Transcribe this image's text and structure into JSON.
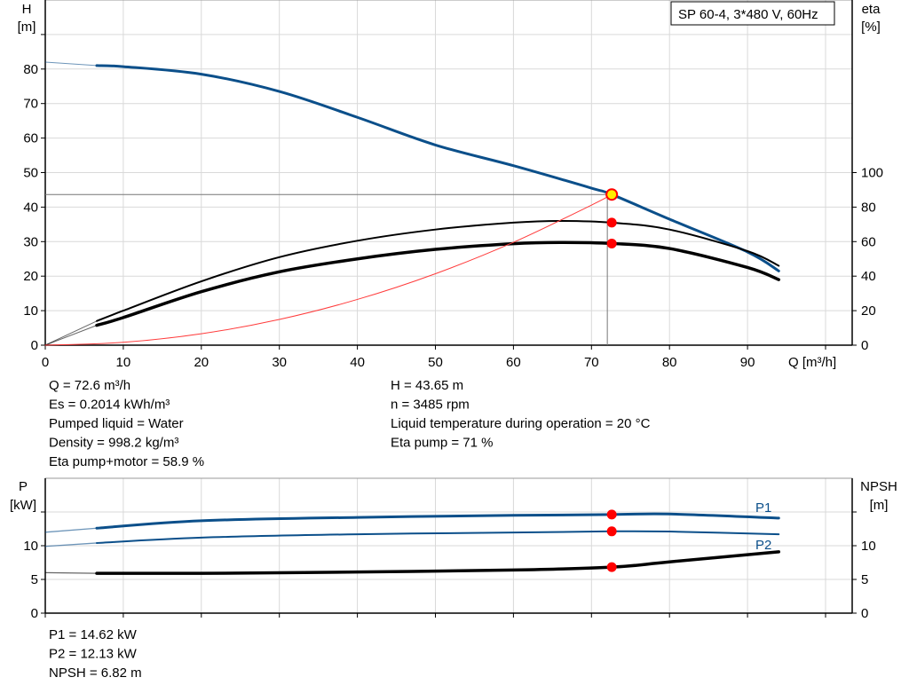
{
  "chart_data": [
    {
      "type": "line",
      "legend": "SP 60-4, 3*480 V, 60Hz",
      "legend_placement": "top-right",
      "xlabel": "Q [m³/h]",
      "ylabel": [
        "H",
        "[m]"
      ],
      "y2label": [
        "eta",
        "[%]"
      ],
      "xlim": [
        0,
        104
      ],
      "ylim": [
        0,
        100
      ],
      "y2lim": [
        0,
        200
      ],
      "x_ticks": [
        "0",
        "10",
        "20",
        "30",
        "40",
        "50",
        "60",
        "70",
        "80",
        "90"
      ],
      "y_ticks": [
        "0",
        "10",
        "20",
        "30",
        "40",
        "50",
        "60",
        "70",
        "80"
      ],
      "y2_ticks": [
        "0",
        "20",
        "40",
        "60",
        "80",
        "100"
      ],
      "grid": true,
      "colors": {
        "head": "#0b4f8a",
        "eta": "#000000",
        "system": "#ff3b3b",
        "duty": "#ff0000",
        "duty_fill": "#ffee00"
      },
      "series": [
        {
          "id": "head",
          "axis": "left",
          "width": 3,
          "color": "#0b4f8a",
          "x": [
            6.6,
            10,
            20,
            30,
            40,
            50,
            60,
            70,
            72.6,
            80,
            90,
            94
          ],
          "y": [
            81,
            80.7,
            78.5,
            73.5,
            66,
            58,
            52,
            45.5,
            43.65,
            36.5,
            27,
            21.5
          ],
          "extension": {
            "x": [
              0,
              6.6
            ],
            "y": [
              82,
              81
            ]
          }
        },
        {
          "id": "eta-pump",
          "axis": "right",
          "width": 2,
          "color": "#000000",
          "x": [
            6.6,
            10,
            20,
            30,
            40,
            50,
            60,
            66,
            72.6,
            80,
            90,
            94
          ],
          "y": [
            14,
            20,
            37,
            51,
            60.5,
            67,
            71,
            72,
            71,
            67,
            54.5,
            46
          ],
          "extension": {
            "x": [
              0,
              6.6
            ],
            "y": [
              0,
              14
            ]
          }
        },
        {
          "id": "eta-pump-motor",
          "axis": "right",
          "width": 3.5,
          "color": "#000000",
          "x": [
            6.6,
            10,
            20,
            30,
            40,
            50,
            60,
            66,
            72.6,
            80,
            90,
            94
          ],
          "y": [
            11.5,
            16,
            31,
            42.5,
            50,
            55.5,
            58.8,
            59.5,
            58.9,
            56,
            45,
            38
          ],
          "extension": {
            "x": [
              0,
              6.6
            ],
            "y": [
              0,
              11.5
            ]
          }
        },
        {
          "id": "system-curve",
          "axis": "left",
          "width": 1,
          "color": "#ff3b3b",
          "x": [
            0,
            10,
            20,
            30,
            40,
            50,
            60,
            70,
            72.6
          ],
          "y": [
            0,
            0.83,
            3.31,
            7.45,
            13.25,
            20.7,
            29.8,
            40.58,
            43.65
          ]
        }
      ],
      "duty_point": {
        "Q": 72.6,
        "H": 43.65,
        "eta_pump": 71,
        "eta_pump_motor": 58.9
      }
    },
    {
      "type": "line",
      "ylabel": [
        "P",
        "[kW]"
      ],
      "y2label": [
        "NPSH",
        "[m]"
      ],
      "xlim": [
        0,
        104
      ],
      "ylim": [
        0,
        20
      ],
      "y2lim": [
        0,
        20
      ],
      "y_ticks": [
        "0",
        "5",
        "10"
      ],
      "y2_ticks": [
        "0",
        "5",
        "10"
      ],
      "grid": true,
      "series": [
        {
          "id": "P1",
          "name": "P1",
          "width": 3,
          "color": "#0b4f8a",
          "x": [
            6.6,
            20,
            40,
            60,
            72.6,
            80,
            94
          ],
          "y": [
            12.6,
            13.7,
            14.2,
            14.5,
            14.62,
            14.7,
            14.1
          ],
          "extension": {
            "x": [
              0,
              6.6
            ],
            "y": [
              12,
              12.6
            ]
          }
        },
        {
          "id": "P2",
          "name": "P2",
          "width": 2,
          "color": "#0b4f8a",
          "x": [
            6.6,
            20,
            40,
            60,
            72.6,
            80,
            94
          ],
          "y": [
            10.4,
            11.2,
            11.7,
            11.95,
            12.13,
            12.1,
            11.7
          ],
          "extension": {
            "x": [
              0,
              6.6
            ],
            "y": [
              9.9,
              10.4
            ]
          }
        },
        {
          "id": "NPSH",
          "width": 3.5,
          "color": "#000000",
          "x": [
            6.6,
            20,
            40,
            60,
            72.6,
            80,
            94
          ],
          "y": [
            5.9,
            5.9,
            6.1,
            6.4,
            6.82,
            7.6,
            9.1
          ],
          "extension": {
            "x": [
              0,
              6.6
            ],
            "y": [
              6,
              5.9
            ]
          }
        }
      ],
      "duty_point": {
        "Q": 72.6,
        "P1": 14.62,
        "P2": 12.13,
        "NPSH": 6.82
      }
    }
  ],
  "info_top_left": [
    "Q = 72.6 m³/h",
    "Es = 0.2014 kWh/m³",
    "Pumped liquid = Water",
    "Density = 998.2 kg/m³",
    "Eta pump+motor = 58.9 %"
  ],
  "info_top_right": [
    "H = 43.65 m",
    "n = 3485 rpm",
    "Liquid temperature during operation = 20 °C",
    "Eta pump = 71 %"
  ],
  "info_bottom": [
    "P1 = 14.62 kW",
    "P2 = 12.13 kW",
    "NPSH = 6.82 m"
  ]
}
